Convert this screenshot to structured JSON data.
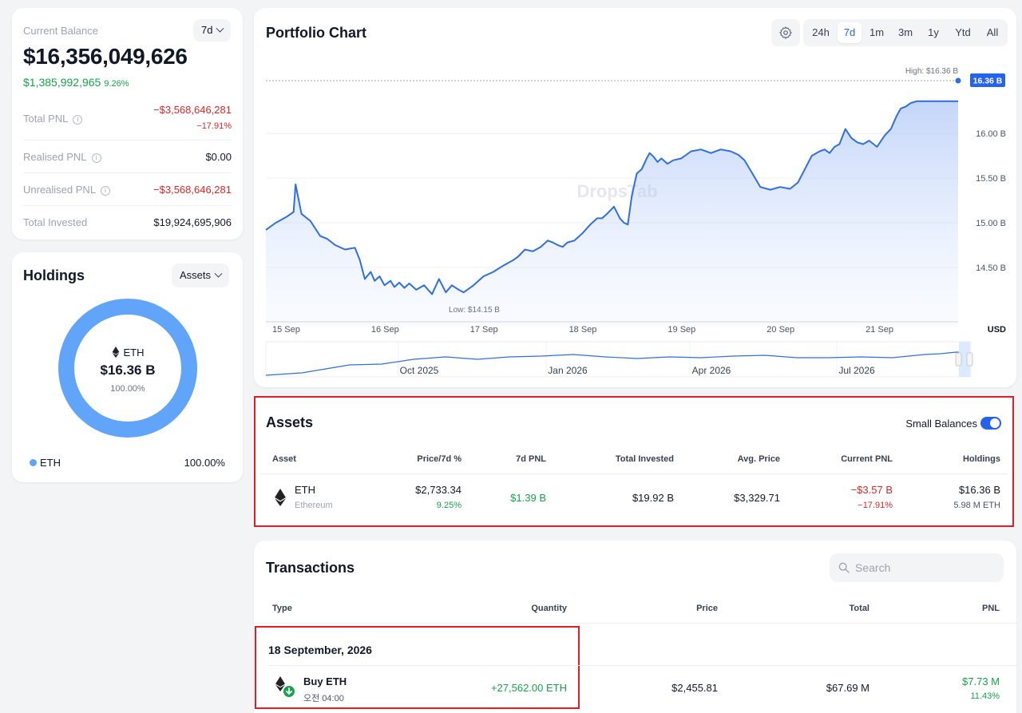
{
  "balance": {
    "label": "Current Balance",
    "period": "7d",
    "value": "$16,356,049,626",
    "change_value": "$1,385,992,965",
    "change_pct": "9.26%",
    "rows": [
      {
        "label": "Total PNL",
        "value": "−$3,568,646,281",
        "sub": "−17.91%"
      },
      {
        "label": "Realised PNL",
        "value": "$0.00"
      },
      {
        "label": "Unrealised PNL",
        "value": "−$3,568,646,281"
      },
      {
        "label": "Total Invested",
        "value": "$19,924,695,906"
      }
    ]
  },
  "holdings": {
    "title": "Holdings",
    "dropdown": "Assets",
    "center_symbol": "ETH",
    "center_value": "$16.36 B",
    "center_pct": "100.00%",
    "legend": [
      {
        "label": "ETH",
        "pct": "100.00%",
        "color": "#60a5fa"
      }
    ]
  },
  "portfolio_chart": {
    "title": "Portfolio Chart",
    "ranges": [
      "24h",
      "7d",
      "1m",
      "3m",
      "1y",
      "Ytd",
      "All"
    ],
    "active_range": "7d",
    "watermark": "DropsTab",
    "high_label": "High: $16.36 B",
    "low_label": "Low: $14.15 B",
    "current_label": "16.36 B",
    "currency": "USD",
    "navigator_labels": [
      "Oct 2025",
      "Jan 2026",
      "Apr 2026",
      "Jul 2026"
    ]
  },
  "chart_data": {
    "type": "area",
    "x_ticks": [
      "15 Sep",
      "16 Sep",
      "17 Sep",
      "18 Sep",
      "19 Sep",
      "20 Sep",
      "21 Sep"
    ],
    "y_ticks": [
      "14.50 B",
      "15.00 B",
      "15.50 B",
      "16.00 B"
    ],
    "ylim": [
      13.9,
      16.6
    ],
    "series": [
      {
        "x": [
          0.0,
          0.1,
          0.2,
          0.28,
          0.3,
          0.36,
          0.45,
          0.55,
          0.62,
          0.7,
          0.8,
          0.9,
          0.95,
          1.0,
          1.06,
          1.1,
          1.15,
          1.2,
          1.26,
          1.3,
          1.35,
          1.4,
          1.45,
          1.52,
          1.6,
          1.68,
          1.75,
          1.82,
          1.88,
          1.95,
          2.0,
          2.1,
          2.2,
          2.3,
          2.4,
          2.5,
          2.55,
          2.62,
          2.7,
          2.78,
          2.85,
          2.9,
          2.95,
          3.0,
          3.05,
          3.12,
          3.2,
          3.28,
          3.35,
          3.4,
          3.45,
          3.52,
          3.58,
          3.62,
          3.66,
          3.7,
          3.75,
          3.8,
          3.85,
          3.88,
          3.92,
          3.96,
          4.0,
          4.06,
          4.12,
          4.2,
          4.3,
          4.4,
          4.5,
          4.6,
          4.7,
          4.78,
          4.84,
          4.92,
          5.0,
          5.1,
          5.2,
          5.3,
          5.38,
          5.45,
          5.52,
          5.6,
          5.65,
          5.7,
          5.75,
          5.8,
          5.86,
          5.92,
          5.98,
          6.04,
          6.1,
          6.18,
          6.26,
          6.32,
          6.38,
          6.42,
          6.47,
          6.52,
          6.58,
          6.62,
          6.66,
          6.7,
          6.75,
          6.8,
          6.86,
          6.92,
          6.96,
          7.0
        ],
        "values": [
          14.92,
          15.0,
          15.06,
          15.12,
          15.43,
          15.1,
          15.02,
          14.85,
          14.82,
          14.75,
          14.7,
          14.72,
          14.58,
          14.37,
          14.45,
          14.35,
          14.4,
          14.3,
          14.35,
          14.28,
          14.33,
          14.27,
          14.32,
          14.25,
          14.3,
          14.2,
          14.37,
          14.22,
          14.3,
          14.25,
          14.22,
          14.3,
          14.4,
          14.45,
          14.52,
          14.58,
          14.62,
          14.7,
          14.68,
          14.73,
          14.8,
          14.78,
          14.75,
          14.73,
          14.78,
          14.8,
          14.88,
          14.98,
          15.05,
          15.05,
          15.1,
          15.18,
          15.05,
          15.0,
          14.98,
          15.3,
          15.55,
          15.6,
          15.72,
          15.78,
          15.74,
          15.68,
          15.72,
          15.66,
          15.7,
          15.72,
          15.8,
          15.82,
          15.78,
          15.82,
          15.8,
          15.76,
          15.7,
          15.55,
          15.4,
          15.37,
          15.4,
          15.38,
          15.45,
          15.6,
          15.75,
          15.8,
          15.82,
          15.78,
          15.85,
          15.88,
          16.05,
          15.95,
          15.9,
          15.88,
          15.92,
          15.85,
          15.98,
          16.05,
          16.2,
          16.28,
          16.3,
          16.34,
          16.36,
          16.36,
          16.36,
          16.36,
          16.36,
          16.36,
          16.36,
          16.36,
          16.36,
          16.36
        ]
      }
    ]
  },
  "assets": {
    "title": "Assets",
    "small_balances_label": "Small Balances",
    "columns": [
      "Asset",
      "Price/7d %",
      "7d PNL",
      "Total Invested",
      "Avg. Price",
      "Current PNL",
      "Holdings"
    ],
    "rows": [
      {
        "symbol": "ETH",
        "name": "Ethereum",
        "price": "$2,733.34",
        "change": "9.25%",
        "pnl7d": "$1.39 B",
        "invested": "$19.92 B",
        "avg_price": "$3,329.71",
        "current_pnl": "−$3.57 B",
        "current_pnl_pct": "−17.91%",
        "holdings": "$16.36 B",
        "holdings_qty": "5.98 M ETH"
      }
    ]
  },
  "transactions": {
    "title": "Transactions",
    "search_placeholder": "Search",
    "columns": [
      "Type",
      "Quantity",
      "Price",
      "Total",
      "PNL"
    ],
    "groups": [
      {
        "date": "18 September, 2026",
        "items": [
          {
            "type": "Buy ETH",
            "time": "오전 04:00",
            "quantity": "+27,562.00 ETH",
            "price": "$2,455.81",
            "total": "$67.69 M",
            "pnl": "$7.73 M",
            "pnl_pct": "11.43%"
          }
        ]
      }
    ]
  },
  "colors": {
    "accent": "#2563eb",
    "positive": "#16a34a",
    "negative": "#dc2626",
    "donut": "#60a5fa",
    "highlight_border": "#e11d26"
  }
}
